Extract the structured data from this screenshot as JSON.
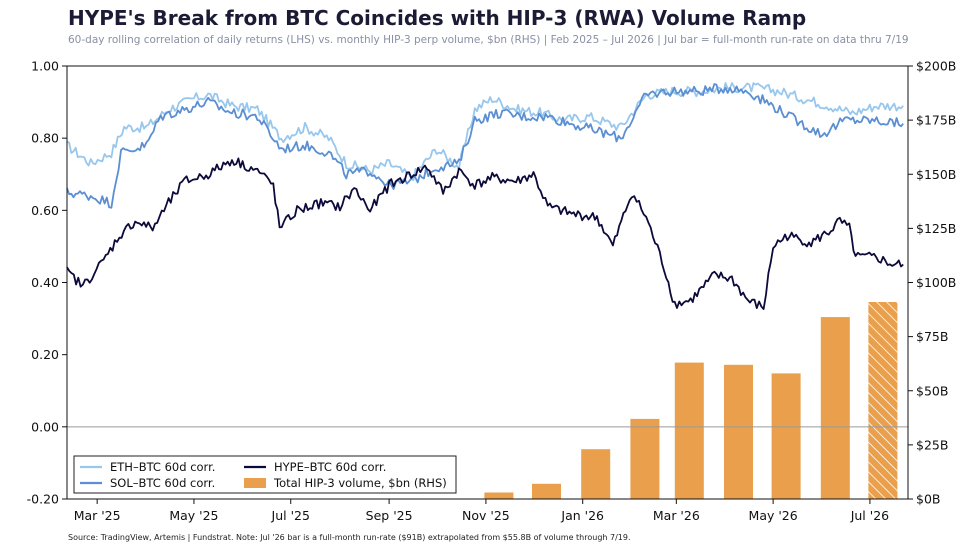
{
  "title": "HYPE's Break from BTC Coincides with HIP-3 (RWA) Volume Ramp",
  "subtitle": "60-day rolling correlation of daily returns (LHS) vs. monthly HIP-3 perp volume, $bn (RHS) | Feb 2025 – Jul 2026 | Jul bar = full-month run-rate on data thru 7/19",
  "source": "Source: TradingView, Artemis | Fundstrat. Note: Jul '26 bar is a full-month run-rate ($91B) extrapolated from $55.8B of volume through 7/19.",
  "chart_data": {
    "type": "line+bar",
    "x_range": [
      "2025-02-10",
      "2026-07-25"
    ],
    "y_left": {
      "range": [
        -0.2,
        1.0
      ],
      "ticks": [
        1.0,
        0.8,
        0.6,
        0.4,
        0.2,
        0.0,
        -0.2
      ],
      "tick_labels": [
        "1.00",
        "0.80",
        "0.60",
        "0.40",
        "0.20",
        "0.00",
        "-0.20"
      ]
    },
    "y_right": {
      "range": [
        0,
        200
      ],
      "ticks": [
        200,
        175,
        150,
        125,
        100,
        75,
        50,
        25,
        0
      ],
      "tick_labels": [
        "$200B",
        "$175B",
        "$150B",
        "$125B",
        "$100B",
        "$75B",
        "$50B",
        "$25B",
        "$0B"
      ]
    },
    "x_ticks": [
      {
        "date": "2025-03-01",
        "label": "Mar '25"
      },
      {
        "date": "2025-05-01",
        "label": "May '25"
      },
      {
        "date": "2025-07-01",
        "label": "Jul '25"
      },
      {
        "date": "2025-09-01",
        "label": "Sep '25"
      },
      {
        "date": "2025-11-01",
        "label": "Nov '25"
      },
      {
        "date": "2026-01-01",
        "label": "Jan '26"
      },
      {
        "date": "2026-03-01",
        "label": "Mar '26"
      },
      {
        "date": "2026-05-01",
        "label": "May '26"
      },
      {
        "date": "2026-07-01",
        "label": "Jul '26"
      }
    ],
    "bars": {
      "name": "Total HIP-3 volume, $bn (RHS)",
      "color": "#e99f4b",
      "months": [
        "2025-11-01",
        "2025-12-01",
        "2026-01-01",
        "2026-02-01",
        "2026-03-01",
        "2026-04-01",
        "2026-05-01",
        "2026-06-01",
        "2026-07-01"
      ],
      "values": [
        3,
        7,
        23,
        37,
        63,
        62,
        58,
        84,
        91
      ],
      "hatched_last": true
    },
    "series": [
      {
        "name": "ETH–BTC 60d corr.",
        "color": "#98c7ee",
        "points": [
          [
            "2025-02-10",
            0.78
          ],
          [
            "2025-02-25",
            0.73
          ],
          [
            "2025-03-10",
            0.76
          ],
          [
            "2025-03-18",
            0.83
          ],
          [
            "2025-04-01",
            0.83
          ],
          [
            "2025-04-15",
            0.88
          ],
          [
            "2025-05-01",
            0.91
          ],
          [
            "2025-05-10",
            0.92
          ],
          [
            "2025-05-25",
            0.89
          ],
          [
            "2025-06-10",
            0.88
          ],
          [
            "2025-06-25",
            0.8
          ],
          [
            "2025-07-10",
            0.83
          ],
          [
            "2025-07-25",
            0.8
          ],
          [
            "2025-08-05",
            0.73
          ],
          [
            "2025-08-20",
            0.71
          ],
          [
            "2025-09-01",
            0.73
          ],
          [
            "2025-09-15",
            0.69
          ],
          [
            "2025-10-01",
            0.77
          ],
          [
            "2025-10-15",
            0.72
          ],
          [
            "2025-10-25",
            0.88
          ],
          [
            "2025-11-05",
            0.91
          ],
          [
            "2025-11-20",
            0.88
          ],
          [
            "2025-12-05",
            0.87
          ],
          [
            "2025-12-20",
            0.85
          ],
          [
            "2026-01-05",
            0.86
          ],
          [
            "2026-01-25",
            0.83
          ],
          [
            "2026-02-10",
            0.92
          ],
          [
            "2026-02-25",
            0.93
          ],
          [
            "2026-03-15",
            0.93
          ],
          [
            "2026-04-01",
            0.94
          ],
          [
            "2026-04-20",
            0.94
          ],
          [
            "2026-05-05",
            0.93
          ],
          [
            "2026-05-20",
            0.91
          ],
          [
            "2026-06-05",
            0.89
          ],
          [
            "2026-06-20",
            0.87
          ],
          [
            "2026-07-05",
            0.89
          ],
          [
            "2026-07-22",
            0.89
          ]
        ]
      },
      {
        "name": "SOL–BTC 60d corr.",
        "color": "#5b8fd1",
        "points": [
          [
            "2025-02-10",
            0.65
          ],
          [
            "2025-02-25",
            0.64
          ],
          [
            "2025-03-10",
            0.62
          ],
          [
            "2025-03-16",
            0.76
          ],
          [
            "2025-04-01",
            0.78
          ],
          [
            "2025-04-10",
            0.86
          ],
          [
            "2025-04-25",
            0.88
          ],
          [
            "2025-05-10",
            0.9
          ],
          [
            "2025-05-25",
            0.87
          ],
          [
            "2025-06-10",
            0.86
          ],
          [
            "2025-06-25",
            0.77
          ],
          [
            "2025-07-10",
            0.78
          ],
          [
            "2025-07-25",
            0.76
          ],
          [
            "2025-08-05",
            0.7
          ],
          [
            "2025-08-20",
            0.71
          ],
          [
            "2025-09-01",
            0.67
          ],
          [
            "2025-09-15",
            0.68
          ],
          [
            "2025-10-01",
            0.72
          ],
          [
            "2025-10-15",
            0.73
          ],
          [
            "2025-10-25",
            0.85
          ],
          [
            "2025-11-10",
            0.87
          ],
          [
            "2025-11-25",
            0.86
          ],
          [
            "2025-12-10",
            0.86
          ],
          [
            "2025-12-25",
            0.84
          ],
          [
            "2026-01-10",
            0.82
          ],
          [
            "2026-01-25",
            0.8
          ],
          [
            "2026-02-10",
            0.92
          ],
          [
            "2026-02-25",
            0.93
          ],
          [
            "2026-03-15",
            0.93
          ],
          [
            "2026-04-01",
            0.94
          ],
          [
            "2026-04-15",
            0.93
          ],
          [
            "2026-05-01",
            0.89
          ],
          [
            "2026-05-15",
            0.85
          ],
          [
            "2026-06-01",
            0.81
          ],
          [
            "2026-06-15",
            0.85
          ],
          [
            "2026-07-01",
            0.85
          ],
          [
            "2026-07-22",
            0.84
          ]
        ]
      },
      {
        "name": "HYPE–BTC 60d corr.",
        "color": "#0c0a3a",
        "points": [
          [
            "2025-02-10",
            0.43
          ],
          [
            "2025-02-20",
            0.39
          ],
          [
            "2025-03-05",
            0.46
          ],
          [
            "2025-03-15",
            0.53
          ],
          [
            "2025-03-25",
            0.57
          ],
          [
            "2025-04-05",
            0.55
          ],
          [
            "2025-04-15",
            0.62
          ],
          [
            "2025-04-25",
            0.68
          ],
          [
            "2025-05-10",
            0.7
          ],
          [
            "2025-05-25",
            0.74
          ],
          [
            "2025-06-10",
            0.71
          ],
          [
            "2025-06-20",
            0.67
          ],
          [
            "2025-06-24",
            0.55
          ],
          [
            "2025-07-05",
            0.6
          ],
          [
            "2025-07-20",
            0.62
          ],
          [
            "2025-08-01",
            0.61
          ],
          [
            "2025-08-10",
            0.66
          ],
          [
            "2025-08-20",
            0.6
          ],
          [
            "2025-09-01",
            0.67
          ],
          [
            "2025-09-15",
            0.7
          ],
          [
            "2025-09-25",
            0.72
          ],
          [
            "2025-10-05",
            0.65
          ],
          [
            "2025-10-15",
            0.71
          ],
          [
            "2025-10-25",
            0.67
          ],
          [
            "2025-11-05",
            0.69
          ],
          [
            "2025-11-20",
            0.68
          ],
          [
            "2025-12-01",
            0.7
          ],
          [
            "2025-12-10",
            0.61
          ],
          [
            "2025-12-25",
            0.59
          ],
          [
            "2026-01-10",
            0.58
          ],
          [
            "2026-01-20",
            0.5
          ],
          [
            "2026-02-01",
            0.65
          ],
          [
            "2026-02-10",
            0.58
          ],
          [
            "2026-02-20",
            0.46
          ],
          [
            "2026-02-28",
            0.34
          ],
          [
            "2026-03-10",
            0.35
          ],
          [
            "2026-03-25",
            0.42
          ],
          [
            "2026-04-05",
            0.41
          ],
          [
            "2026-04-15",
            0.35
          ],
          [
            "2026-04-25",
            0.33
          ],
          [
            "2026-05-01",
            0.5
          ],
          [
            "2026-05-10",
            0.53
          ],
          [
            "2026-05-25",
            0.51
          ],
          [
            "2026-06-05",
            0.54
          ],
          [
            "2026-06-12",
            0.57
          ],
          [
            "2026-06-18",
            0.55
          ],
          [
            "2026-06-22",
            0.47
          ],
          [
            "2026-07-05",
            0.47
          ],
          [
            "2026-07-15",
            0.45
          ],
          [
            "2026-07-22",
            0.45
          ]
        ]
      }
    ],
    "legend": {
      "placement": "bottom-left",
      "entries": [
        "ETH–BTC 60d corr.",
        "HYPE–BTC 60d corr.",
        "SOL–BTC 60d corr.",
        "Total HIP-3 volume, $bn (RHS)"
      ]
    },
    "zero_line": true
  }
}
